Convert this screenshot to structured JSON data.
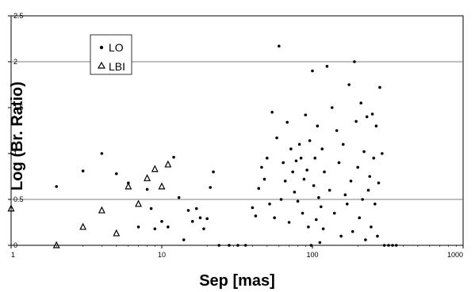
{
  "chart_data": {
    "type": "scatter",
    "title": "",
    "xlabel": "Sep [mas]",
    "ylabel": "Log (Br. Ratio)",
    "xscale": "log",
    "xlim": [
      1,
      1000
    ],
    "ylim": [
      0,
      2.5
    ],
    "xticks": [
      "1",
      "10",
      "100",
      "1000"
    ],
    "yticks": [
      "0",
      "0.5",
      "1",
      "1.5",
      "2",
      "2.5"
    ],
    "grid": "horizontal at 0.5 and 2",
    "legend_position": "top-left",
    "series": [
      {
        "name": "LO",
        "marker": "dot",
        "points": [
          [
            2,
            0.64
          ],
          [
            3,
            0.81
          ],
          [
            4,
            1.0
          ],
          [
            5,
            0.78
          ],
          [
            6,
            0.68
          ],
          [
            7,
            0.2
          ],
          [
            8,
            0.61
          ],
          [
            8.5,
            0.4
          ],
          [
            9,
            0.18
          ],
          [
            10,
            0.26
          ],
          [
            11,
            0.2
          ],
          [
            12,
            0.96
          ],
          [
            13,
            0.52
          ],
          [
            14,
            0.06
          ],
          [
            15,
            0.38
          ],
          [
            16,
            0.26
          ],
          [
            17,
            0.4
          ],
          [
            18,
            0.3
          ],
          [
            19,
            0.18
          ],
          [
            20,
            0.29
          ],
          [
            21,
            0.63
          ],
          [
            22,
            0.8
          ],
          [
            24,
            0.0
          ],
          [
            28,
            0.0
          ],
          [
            32,
            0.0
          ],
          [
            36,
            0.0
          ],
          [
            40,
            0.41
          ],
          [
            42,
            0.32
          ],
          [
            44,
            0.62
          ],
          [
            46,
            0.85
          ],
          [
            48,
            0.72
          ],
          [
            50,
            0.95
          ],
          [
            52,
            0.45
          ],
          [
            54,
            1.45
          ],
          [
            56,
            0.3
          ],
          [
            58,
            1.17
          ],
          [
            60,
            2.17
          ],
          [
            62,
            0.5
          ],
          [
            64,
            0.9
          ],
          [
            66,
            0.7
          ],
          [
            68,
            1.34
          ],
          [
            70,
            0.25
          ],
          [
            72,
            1.05
          ],
          [
            74,
            0.8
          ],
          [
            76,
            0.58
          ],
          [
            78,
            0.92
          ],
          [
            80,
            0.48
          ],
          [
            82,
            1.1
          ],
          [
            84,
            0.95
          ],
          [
            86,
            0.35
          ],
          [
            88,
            0.72
          ],
          [
            90,
            1.42
          ],
          [
            92,
            0.82
          ],
          [
            94,
            0.2
          ],
          [
            96,
            1.14
          ],
          [
            98,
            0.0
          ],
          [
            100,
            1.9
          ],
          [
            102,
            0.65
          ],
          [
            104,
            0.95
          ],
          [
            106,
            0.28
          ],
          [
            108,
            1.3
          ],
          [
            110,
            0.52
          ],
          [
            112,
            0.03
          ],
          [
            114,
            0.42
          ],
          [
            116,
            1.05
          ],
          [
            118,
            0.18
          ],
          [
            120,
            0.8
          ],
          [
            125,
            1.95
          ],
          [
            130,
            0.6
          ],
          [
            135,
            1.5
          ],
          [
            140,
            0.35
          ],
          [
            145,
            1.25
          ],
          [
            150,
            0.9
          ],
          [
            155,
            0.1
          ],
          [
            160,
            1.1
          ],
          [
            165,
            0.55
          ],
          [
            170,
            0.45
          ],
          [
            175,
            1.75
          ],
          [
            180,
            0.7
          ],
          [
            185,
            0.15
          ],
          [
            190,
            2.0
          ],
          [
            195,
            1.35
          ],
          [
            200,
            0.85
          ],
          [
            205,
            0.3
          ],
          [
            210,
            1.55
          ],
          [
            215,
            0.5
          ],
          [
            220,
            1.02
          ],
          [
            225,
            0.06
          ],
          [
            230,
            1.4
          ],
          [
            235,
            0.6
          ],
          [
            240,
            0.75
          ],
          [
            245,
            0.2
          ],
          [
            250,
            1.43
          ],
          [
            255,
            0.95
          ],
          [
            260,
            0.45
          ],
          [
            265,
            1.3
          ],
          [
            270,
            0.1
          ],
          [
            275,
            0.68
          ],
          [
            280,
            1.72
          ],
          [
            290,
            1.0
          ],
          [
            300,
            0.0
          ],
          [
            320,
            0.0
          ],
          [
            340,
            0.0
          ],
          [
            360,
            0.0
          ]
        ]
      },
      {
        "name": "LBI",
        "marker": "open-triangle",
        "points": [
          [
            1,
            0.4
          ],
          [
            2,
            0.0
          ],
          [
            3,
            0.2
          ],
          [
            4,
            0.38
          ],
          [
            5,
            0.13
          ],
          [
            6,
            0.64
          ],
          [
            7,
            0.45
          ],
          [
            8,
            0.73
          ],
          [
            9,
            0.83
          ],
          [
            10,
            0.64
          ],
          [
            11,
            0.88
          ]
        ]
      }
    ]
  }
}
